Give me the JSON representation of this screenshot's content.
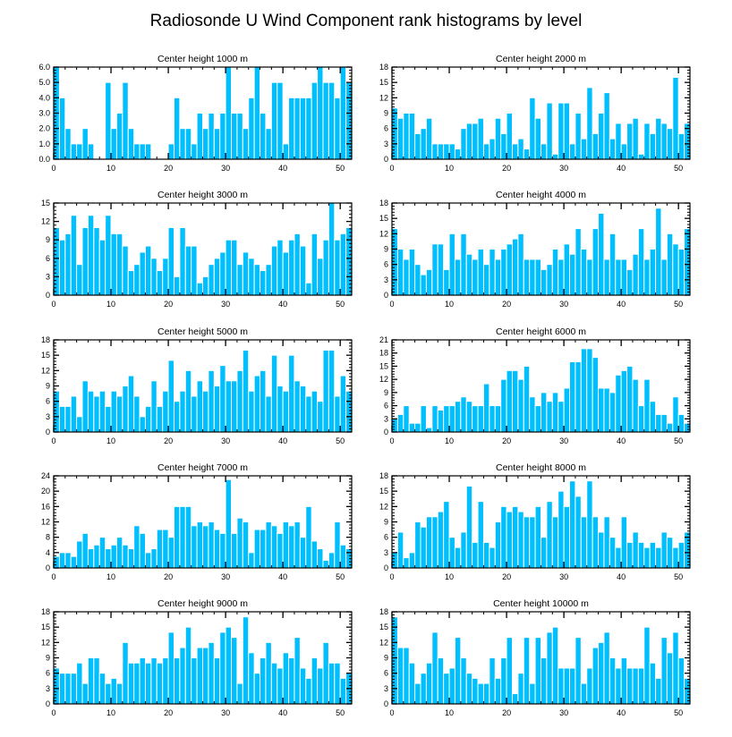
{
  "page_title": "Radiosonde U Wind Component rank histograms by level",
  "chart_data": [
    {
      "type": "bar",
      "title": "Center height 1000 m",
      "xlim": [
        0,
        52
      ],
      "ylim": [
        0,
        6
      ],
      "yticks": [
        0,
        1,
        2,
        3,
        4,
        5,
        6
      ],
      "ytick_labels": [
        "0.0",
        "1.0",
        "2.0",
        "3.0",
        "4.0",
        "5.0",
        "6.0"
      ],
      "xticks": [
        0,
        10,
        20,
        30,
        40,
        50
      ],
      "xtick_labels": [
        "0",
        "10",
        "20",
        "30",
        "40",
        "50"
      ],
      "values": [
        6,
        4,
        2,
        1,
        1,
        2,
        1,
        0,
        0,
        5,
        2,
        3,
        5,
        2,
        1,
        1,
        1,
        0,
        0,
        0,
        1,
        4,
        2,
        2,
        1,
        3,
        2,
        3,
        2,
        3,
        6,
        3,
        3,
        2,
        4,
        6,
        3,
        2,
        5,
        5,
        1,
        4,
        4,
        4,
        4,
        5,
        6,
        5,
        5,
        4,
        6,
        5
      ]
    },
    {
      "type": "bar",
      "title": "Center height 2000 m",
      "xlim": [
        0,
        52
      ],
      "ylim": [
        0,
        18
      ],
      "yticks": [
        0,
        3,
        6,
        9,
        12,
        15,
        18
      ],
      "ytick_labels": [
        "0",
        "3",
        "6",
        "9",
        "12",
        "15",
        "18"
      ],
      "xticks": [
        0,
        10,
        20,
        30,
        40,
        50
      ],
      "xtick_labels": [
        "0",
        "10",
        "20",
        "30",
        "40",
        "50"
      ],
      "values": [
        10,
        8,
        9,
        9,
        5,
        6,
        8,
        3,
        3,
        3,
        3,
        2,
        6,
        7,
        7,
        8,
        3,
        4,
        8,
        5,
        9,
        3,
        4,
        2,
        12,
        8,
        3,
        11,
        1,
        11,
        11,
        3,
        9,
        4,
        14,
        5,
        9,
        13,
        4,
        7,
        3,
        7,
        8,
        1,
        7,
        5,
        8,
        7,
        6,
        16,
        5,
        7
      ]
    },
    {
      "type": "bar",
      "title": "Center height 3000 m",
      "xlim": [
        0,
        52
      ],
      "ylim": [
        0,
        15
      ],
      "yticks": [
        0,
        3,
        6,
        9,
        12,
        15
      ],
      "ytick_labels": [
        "0",
        "3",
        "6",
        "9",
        "12",
        "15"
      ],
      "xticks": [
        0,
        10,
        20,
        30,
        40,
        50
      ],
      "xtick_labels": [
        "0",
        "10",
        "20",
        "30",
        "40",
        "50"
      ],
      "values": [
        11,
        9,
        10,
        13,
        5,
        11,
        13,
        11,
        9,
        13,
        10,
        10,
        8,
        4,
        5,
        7,
        8,
        6,
        4,
        6,
        11,
        3,
        11,
        8,
        8,
        2,
        3,
        5,
        6,
        7,
        9,
        9,
        5,
        7,
        6,
        5,
        4,
        5,
        8,
        9,
        7,
        9,
        10,
        8,
        2,
        10,
        6,
        9,
        15,
        9,
        10,
        11
      ]
    },
    {
      "type": "bar",
      "title": "Center height 4000 m",
      "xlim": [
        0,
        52
      ],
      "ylim": [
        0,
        18
      ],
      "yticks": [
        0,
        3,
        6,
        9,
        12,
        15,
        18
      ],
      "ytick_labels": [
        "0",
        "3",
        "6",
        "9",
        "12",
        "15",
        "18"
      ],
      "xticks": [
        0,
        10,
        20,
        30,
        40,
        50
      ],
      "xtick_labels": [
        "0",
        "10",
        "20",
        "30",
        "40",
        "50"
      ],
      "values": [
        13,
        9,
        7,
        9,
        6,
        4,
        5,
        10,
        10,
        5,
        12,
        7,
        12,
        8,
        7,
        9,
        6,
        9,
        7,
        9,
        10,
        11,
        12,
        7,
        7,
        7,
        5,
        6,
        9,
        7,
        10,
        8,
        13,
        9,
        7,
        13,
        16,
        7,
        12,
        7,
        7,
        5,
        8,
        13,
        7,
        9,
        17,
        7,
        12,
        10,
        9,
        13
      ]
    },
    {
      "type": "bar",
      "title": "Center height 5000 m",
      "xlim": [
        0,
        52
      ],
      "ylim": [
        0,
        18
      ],
      "yticks": [
        0,
        3,
        6,
        9,
        12,
        15,
        18
      ],
      "ytick_labels": [
        "0",
        "3",
        "6",
        "9",
        "12",
        "15",
        "18"
      ],
      "xticks": [
        0,
        10,
        20,
        30,
        40,
        50
      ],
      "xtick_labels": [
        "0",
        "10",
        "20",
        "30",
        "40",
        "50"
      ],
      "values": [
        8,
        5,
        5,
        7,
        3,
        10,
        8,
        7,
        8,
        5,
        8,
        7,
        9,
        11,
        7,
        3,
        5,
        10,
        5,
        8,
        14,
        6,
        8,
        12,
        7,
        10,
        8,
        12,
        9,
        13,
        10,
        10,
        12,
        16,
        8,
        11,
        12,
        7,
        15,
        9,
        8,
        15,
        10,
        9,
        7,
        8,
        6,
        16,
        16,
        7,
        11,
        8
      ]
    },
    {
      "type": "bar",
      "title": "Center height 6000 m",
      "xlim": [
        0,
        52
      ],
      "ylim": [
        0,
        21
      ],
      "yticks": [
        0,
        3,
        6,
        9,
        12,
        15,
        18,
        21
      ],
      "ytick_labels": [
        "0",
        "3",
        "6",
        "9",
        "12",
        "15",
        "18",
        "21"
      ],
      "xticks": [
        0,
        10,
        20,
        30,
        40,
        50
      ],
      "xtick_labels": [
        "0",
        "10",
        "20",
        "30",
        "40",
        "50"
      ],
      "values": [
        3,
        4,
        6,
        2,
        2,
        6,
        1,
        6,
        5,
        6,
        6,
        7,
        8,
        7,
        6,
        6,
        11,
        6,
        6,
        12,
        14,
        14,
        12,
        15,
        8,
        6,
        9,
        7,
        9,
        7,
        10,
        16,
        16,
        19,
        19,
        17,
        10,
        10,
        9,
        13,
        14,
        15,
        12,
        6,
        12,
        7,
        4,
        4,
        2,
        8,
        4,
        2
      ]
    },
    {
      "type": "bar",
      "title": "Center height 7000 m",
      "xlim": [
        0,
        52
      ],
      "ylim": [
        0,
        24
      ],
      "yticks": [
        0,
        4,
        8,
        12,
        16,
        20,
        24
      ],
      "ytick_labels": [
        "0",
        "4",
        "8",
        "12",
        "16",
        "20",
        "24"
      ],
      "xticks": [
        0,
        10,
        20,
        30,
        40,
        50
      ],
      "xtick_labels": [
        "0",
        "10",
        "20",
        "30",
        "40",
        "50"
      ],
      "values": [
        3,
        4,
        4,
        3,
        7,
        9,
        5,
        6,
        8,
        5,
        6,
        8,
        6,
        5,
        11,
        9,
        4,
        5,
        10,
        10,
        8,
        16,
        16,
        16,
        11,
        12,
        11,
        12,
        10,
        9,
        23,
        9,
        13,
        12,
        4,
        10,
        10,
        12,
        11,
        9,
        12,
        11,
        12,
        8,
        16,
        7,
        5,
        2,
        4,
        12,
        6,
        5
      ]
    },
    {
      "type": "bar",
      "title": "Center height 8000 m",
      "xlim": [
        0,
        52
      ],
      "ylim": [
        0,
        18
      ],
      "yticks": [
        0,
        3,
        6,
        9,
        12,
        15,
        18
      ],
      "ytick_labels": [
        "0",
        "3",
        "6",
        "9",
        "12",
        "15",
        "18"
      ],
      "xticks": [
        0,
        10,
        20,
        30,
        40,
        50
      ],
      "xtick_labels": [
        "0",
        "10",
        "20",
        "30",
        "40",
        "50"
      ],
      "values": [
        3,
        7,
        2,
        3,
        9,
        8,
        10,
        10,
        11,
        13,
        6,
        4,
        7,
        16,
        5,
        13,
        5,
        4,
        9,
        12,
        11,
        12,
        11,
        10,
        10,
        12,
        6,
        13,
        10,
        15,
        12,
        17,
        14,
        10,
        17,
        10,
        7,
        10,
        6,
        4,
        10,
        5,
        7,
        5,
        4,
        5,
        4,
        7,
        6,
        4,
        5,
        7
      ]
    },
    {
      "type": "bar",
      "title": "Center height 9000 m",
      "xlim": [
        0,
        52
      ],
      "ylim": [
        0,
        18
      ],
      "yticks": [
        0,
        3,
        6,
        9,
        12,
        15,
        18
      ],
      "ytick_labels": [
        "0",
        "3",
        "6",
        "9",
        "12",
        "15",
        "18"
      ],
      "xticks": [
        0,
        10,
        20,
        30,
        40,
        50
      ],
      "xtick_labels": [
        "0",
        "10",
        "20",
        "30",
        "40",
        "50"
      ],
      "values": [
        7,
        6,
        6,
        6,
        8,
        4,
        9,
        9,
        6,
        4,
        5,
        4,
        12,
        8,
        8,
        9,
        8,
        9,
        8,
        9,
        14,
        9,
        11,
        15,
        9,
        11,
        11,
        12,
        9,
        14,
        15,
        13,
        4,
        17,
        10,
        6,
        9,
        12,
        8,
        7,
        10,
        9,
        13,
        7,
        5,
        9,
        7,
        12,
        8,
        8,
        5,
        6
      ]
    },
    {
      "type": "bar",
      "title": "Center height 10000 m",
      "xlim": [
        0,
        52
      ],
      "ylim": [
        0,
        18
      ],
      "yticks": [
        0,
        3,
        6,
        9,
        12,
        15,
        18
      ],
      "ytick_labels": [
        "0",
        "3",
        "6",
        "9",
        "12",
        "15",
        "18"
      ],
      "xticks": [
        0,
        10,
        20,
        30,
        40,
        50
      ],
      "xtick_labels": [
        "0",
        "10",
        "20",
        "30",
        "40",
        "50"
      ],
      "values": [
        17,
        11,
        11,
        8,
        4,
        6,
        8,
        14,
        9,
        6,
        7,
        13,
        9,
        6,
        5,
        4,
        4,
        9,
        5,
        9,
        13,
        2,
        6,
        13,
        4,
        13,
        9,
        14,
        15,
        7,
        7,
        7,
        13,
        4,
        7,
        11,
        12,
        14,
        9,
        7,
        9,
        7,
        7,
        7,
        15,
        8,
        5,
        13,
        10,
        14,
        9,
        5
      ]
    }
  ],
  "colors": {
    "bar_fill": "#00bfff",
    "bar_edge": "#ffffff",
    "axis": "#000000",
    "text": "#000000",
    "background": "#ffffff"
  }
}
